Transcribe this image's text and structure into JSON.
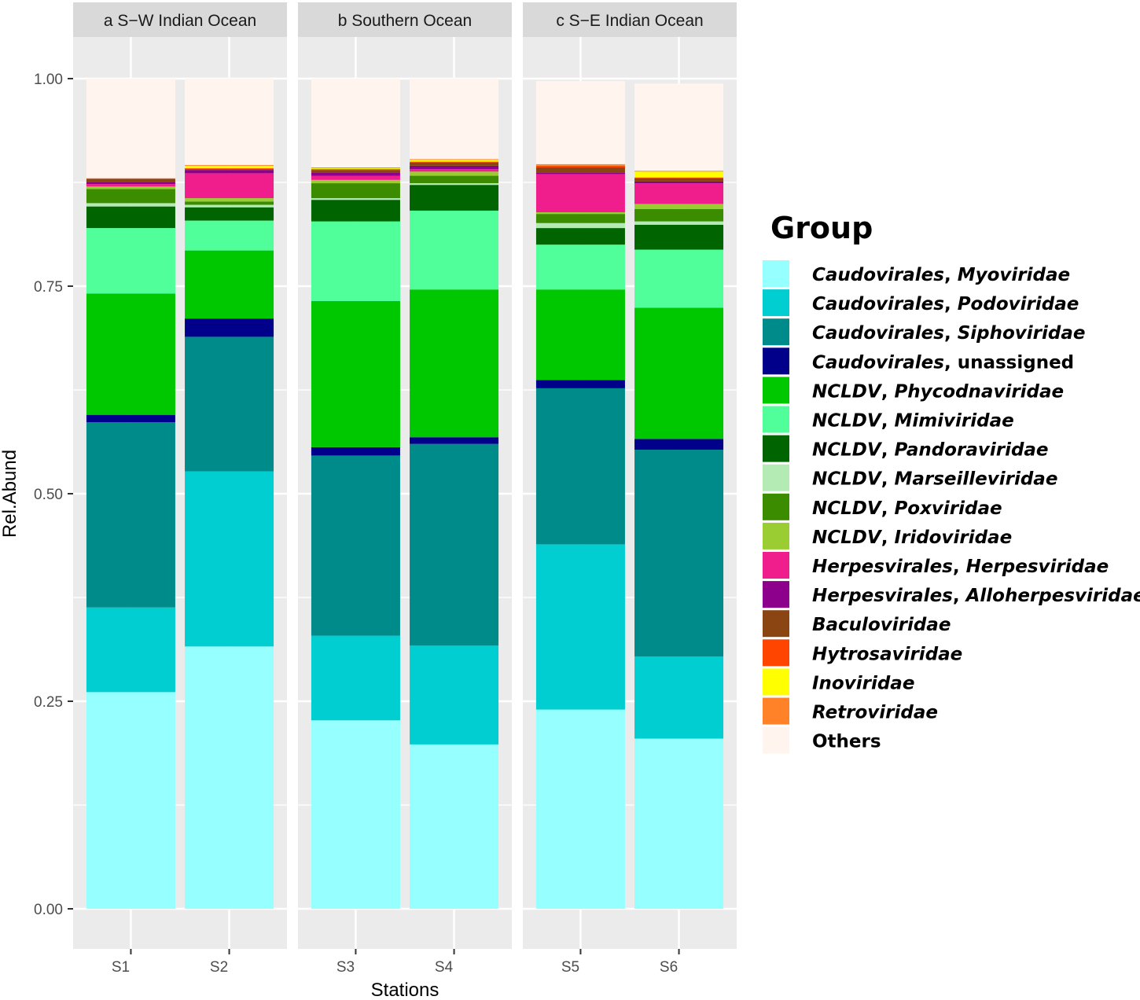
{
  "chart_data": {
    "type": "bar",
    "stacked": true,
    "ylabel": "Rel.Abund",
    "xlabel": "Stations",
    "ylim": [
      0,
      1.05
    ],
    "yticks": [
      0.0,
      0.25,
      0.5,
      0.75,
      1.0
    ],
    "ytick_labels": [
      "0.00",
      "0.25",
      "0.50",
      "0.75",
      "1.00"
    ],
    "legend_title": "Group",
    "facets": [
      {
        "label": "a S−W Indian Ocean",
        "stations": [
          "S1",
          "S2"
        ]
      },
      {
        "label": "b Southern Ocean",
        "stations": [
          "S3",
          "S4"
        ]
      },
      {
        "label": "c S−E Indian Ocean",
        "stations": [
          "S5",
          "S6"
        ]
      }
    ],
    "categories": [
      "S1",
      "S2",
      "S3",
      "S4",
      "S5",
      "S6"
    ],
    "series": [
      {
        "prefix": "Caudovirales",
        "suffix": "Myoviridae",
        "suffix_italic": true,
        "color": "#96FFFF",
        "values": [
          0.261,
          0.316,
          0.227,
          0.198,
          0.24,
          0.205
        ]
      },
      {
        "prefix": "Caudovirales",
        "suffix": "Podoviridae",
        "suffix_italic": true,
        "color": "#00CED1",
        "values": [
          0.102,
          0.211,
          0.102,
          0.119,
          0.199,
          0.099
        ]
      },
      {
        "prefix": "Caudovirales",
        "suffix": "Siphoviridae",
        "suffix_italic": true,
        "color": "#008B8B",
        "values": [
          0.223,
          0.162,
          0.217,
          0.243,
          0.188,
          0.249
        ]
      },
      {
        "prefix": "Caudovirales",
        "suffix": "unassigned",
        "suffix_italic": false,
        "color": "#00008B",
        "values": [
          0.009,
          0.022,
          0.01,
          0.008,
          0.01,
          0.013
        ]
      },
      {
        "prefix": "NCLDV",
        "suffix": "Phycodnaviridae",
        "suffix_italic": true,
        "color": "#00C800",
        "values": [
          0.146,
          0.082,
          0.176,
          0.178,
          0.109,
          0.158
        ]
      },
      {
        "prefix": "NCLDV",
        "suffix": "Mimiviridae",
        "suffix_italic": true,
        "color": "#50FF9A",
        "values": [
          0.079,
          0.036,
          0.096,
          0.095,
          0.054,
          0.07
        ]
      },
      {
        "prefix": "NCLDV",
        "suffix": "Pandoraviridae",
        "suffix_italic": true,
        "color": "#006400",
        "values": [
          0.026,
          0.016,
          0.026,
          0.031,
          0.02,
          0.03
        ]
      },
      {
        "prefix": "NCLDV",
        "suffix": "Marseilleviridae",
        "suffix_italic": true,
        "color": "#B4EBB4",
        "values": [
          0.004,
          0.003,
          0.002,
          0.002,
          0.006,
          0.004
        ]
      },
      {
        "prefix": "NCLDV",
        "suffix": "Poxviridae",
        "suffix_italic": true,
        "color": "#3C8C00",
        "values": [
          0.017,
          0.004,
          0.018,
          0.009,
          0.011,
          0.015
        ]
      },
      {
        "prefix": "NCLDV",
        "suffix": "Iridoviridae",
        "suffix_italic": true,
        "color": "#9ACD32",
        "values": [
          0.003,
          0.004,
          0.004,
          0.005,
          0.002,
          0.006
        ]
      },
      {
        "prefix": "Herpesvirales",
        "suffix": "Herpesviridae",
        "suffix_italic": true,
        "color": "#F01E8C",
        "values": [
          0.003,
          0.03,
          0.005,
          0.003,
          0.046,
          0.025
        ]
      },
      {
        "prefix": "Herpesvirales",
        "suffix": "Alloherpesviridae",
        "suffix_italic": true,
        "color": "#8C008C",
        "values": [
          0.002,
          0.004,
          0.004,
          0.004,
          0.002,
          0.002
        ]
      },
      {
        "prefix": "Baculoviridae",
        "suffix": "",
        "suffix_italic": true,
        "color": "#8B4513",
        "values": [
          0.004,
          0.001,
          0.003,
          0.004,
          0.006,
          0.004
        ]
      },
      {
        "prefix": "Hytrosaviridae",
        "suffix": "",
        "suffix_italic": true,
        "color": "#FF4500",
        "values": [
          0.001,
          0.001,
          0.001,
          0.001,
          0.002,
          0.001
        ]
      },
      {
        "prefix": "Inoviridae",
        "suffix": "",
        "suffix_italic": true,
        "color": "#FFFF00",
        "values": [
          0.0,
          0.003,
          0.001,
          0.002,
          0.0,
          0.007
        ]
      },
      {
        "prefix": "Retroviridae",
        "suffix": "",
        "suffix_italic": true,
        "color": "#FF8228",
        "values": [
          0.0,
          0.001,
          0.001,
          0.001,
          0.002,
          0.001
        ]
      },
      {
        "prefix": "Others",
        "suffix": "",
        "suffix_italic": false,
        "color": "#FFF5EE",
        "values": [
          0.12,
          0.104,
          0.107,
          0.097,
          0.1,
          0.105
        ]
      }
    ]
  }
}
